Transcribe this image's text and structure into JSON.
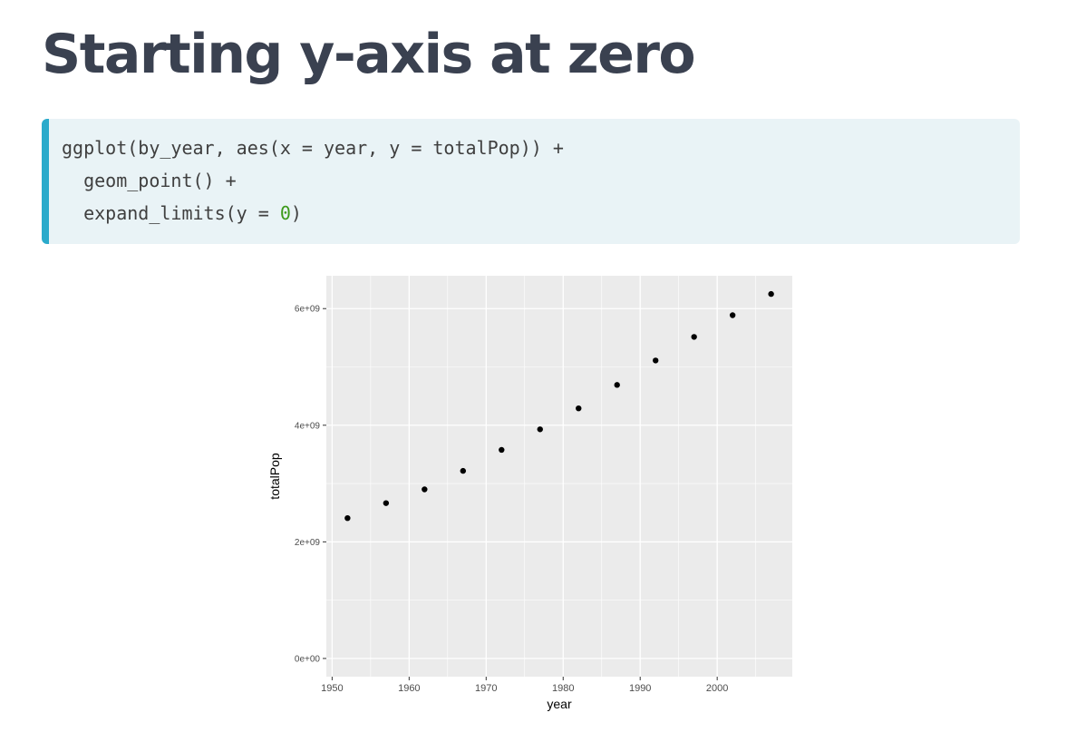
{
  "slide": {
    "title": "Starting y-axis at zero"
  },
  "code": {
    "line1": "ggplot(by_year, aes(x = year, y = totalPop)) +",
    "line2": "  geom_point() +",
    "line3_pre": "  expand_limits(y = ",
    "line3_num": "0",
    "line3_post": ")"
  },
  "colors": {
    "code_accent": "#2aaacb",
    "code_background": "#e9f3f6",
    "numeric_literal": "#3c9a1a",
    "panel_background": "#ebebeb",
    "gridline": "#ffffff",
    "point": "#000000"
  },
  "chart_data": {
    "type": "scatter",
    "title": "",
    "xlabel": "year",
    "ylabel": "totalPop",
    "x": [
      1952,
      1957,
      1962,
      1967,
      1972,
      1977,
      1982,
      1987,
      1992,
      1997,
      2002,
      2007
    ],
    "y": [
      2406957150,
      2664404580,
      2899782974,
      3217478384,
      3576977158,
      3930045807,
      4289436840,
      4691477418,
      5110710260,
      5515204472,
      5886977579,
      6251013179
    ],
    "x_ticks": [
      1950,
      1960,
      1970,
      1980,
      1990,
      2000
    ],
    "x_tick_labels": [
      "1950",
      "1960",
      "1970",
      "1980",
      "1990",
      "2000"
    ],
    "y_ticks": [
      0,
      2000000000,
      4000000000,
      6000000000
    ],
    "y_tick_labels": [
      "0e+00",
      "2e+09",
      "4e+09",
      "6e+09"
    ],
    "xlim": [
      1949.25,
      2009.75
    ],
    "ylim": [
      -312550659,
      6563563838
    ],
    "grid": true,
    "legend": "none"
  }
}
